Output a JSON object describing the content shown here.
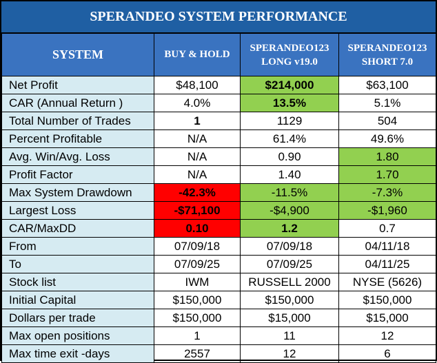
{
  "title": "SPERANDEO SYSTEM PERFORMANCE",
  "headers": {
    "system": "SYSTEM",
    "buyhold": "BUY & HOLD",
    "long_line1": "SPERANDEO123",
    "long_line2": "LONG v19.0",
    "short_line1": "SPERANDEO123",
    "short_line2": "SHORT 7.0"
  },
  "colors": {
    "title_bg": "#1f5fa3",
    "header_bg": "#3a73c0",
    "label_bg": "#d6ebf2",
    "highlight_green": "#92d050",
    "highlight_red": "#ff0000"
  },
  "rows": [
    {
      "label": "Net Profit",
      "bh": "$48,100",
      "long": "$214,000",
      "short": "$63,100"
    },
    {
      "label": "CAR (Annual Return )",
      "bh": "4.0%",
      "long": "13.5%",
      "short": "5.1%"
    },
    {
      "label": "Total Number of Trades",
      "bh": "1",
      "long": "1129",
      "short": "504"
    },
    {
      "label": "Percent Profitable",
      "bh": "N/A",
      "long": "61.4%",
      "short": "49.6%"
    },
    {
      "label": "Avg. Win/Avg. Loss",
      "bh": "N/A",
      "long": "0.90",
      "short": "1.80"
    },
    {
      "label": "Profit Factor",
      "bh": "N/A",
      "long": "1.40",
      "short": "1.70"
    },
    {
      "label": "Max System Drawdown",
      "bh": "-42.3%",
      "long": "-11.5%",
      "short": "-7.3%"
    },
    {
      "label": "Largest Loss",
      "bh": "-$71,100",
      "long": "-$4,900",
      "short": "-$1,960"
    },
    {
      "label": "CAR/MaxDD",
      "bh": "0.10",
      "long": "1.2",
      "short": "0.7"
    },
    {
      "label": "From",
      "bh": "07/09/18",
      "long": "07/09/18",
      "short": "04/11/18"
    },
    {
      "label": "To",
      "bh": "07/09/25",
      "long": "07/09/25",
      "short": "04/11/25"
    },
    {
      "label": "Stock list",
      "bh": "IWM",
      "long": "RUSSELL 2000",
      "short": "NYSE (5626)"
    },
    {
      "label": "Initial Capital",
      "bh": "$150,000",
      "long": "$150,000",
      "short": "$150,000"
    },
    {
      "label": "Dollars per trade",
      "bh": "$150,000",
      "long": "$15,000",
      "short": "$15,000"
    },
    {
      "label": "Max open positions",
      "bh": "1",
      "long": "11",
      "short": "12"
    },
    {
      "label": "Max time exit -days",
      "bh": "2557",
      "long": "12",
      "short": "6"
    }
  ]
}
